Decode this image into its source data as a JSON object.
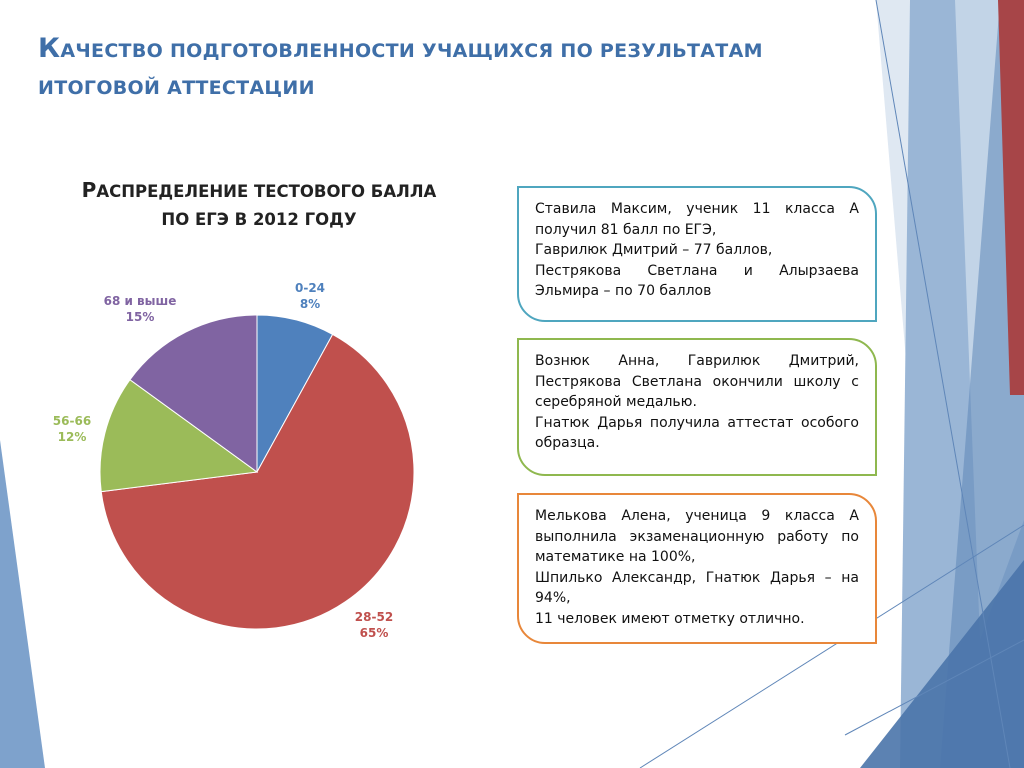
{
  "slide": {
    "title": "Качество подготовленности учащихся по результатам итоговой аттестации",
    "chart_title": "Распределение тестового балла по ЕГЭ в 2012 году",
    "boxes": [
      {
        "paragraphs": [
          "Ставила Максим, ученик 11 класса А получил 81 балл по ЕГЭ,",
          "Гаврилюк Дмитрий – 77 баллов,",
          "Пестрякова Светлана и Алырзаева Эльмира – по 70 баллов"
        ]
      },
      {
        "paragraphs": [
          "Вознюк Анна, Гаврилюк Дмитрий, Пестрякова Светлана окончили школу с серебряной медалью.",
          "Гнатюк Дарья получила аттестат особого образца."
        ]
      },
      {
        "paragraphs": [
          "Мелькова Алена, ученица 9 класса А выполнила экзаменационную работу по математике на 100%,",
          "Шпилько Александр, Гнатюк Дарья – на 94%,",
          "11 человек имеют отметку отлично."
        ]
      }
    ]
  },
  "chart_data": {
    "type": "pie",
    "title": "Распределение тестового балла по ЕГЭ в 2012 году",
    "start_angle": "12 o'clock, clockwise",
    "slices": [
      {
        "category": "0-24",
        "percent_label": "8%",
        "value": 8,
        "color": "#4f81bd"
      },
      {
        "category": "28-52",
        "percent_label": "65%",
        "value": 65,
        "color": "#c0504d"
      },
      {
        "category": "56-66",
        "percent_label": "12%",
        "value": 12,
        "color": "#9bbb59"
      },
      {
        "category": "68 и выше",
        "percent_label": "15%",
        "value": 15,
        "color": "#8064a2"
      }
    ]
  },
  "theme": {
    "title_color": "#3f6fa8",
    "box_border_colors": [
      "#4fa6bf",
      "#8fb84f",
      "#e8873a"
    ]
  }
}
